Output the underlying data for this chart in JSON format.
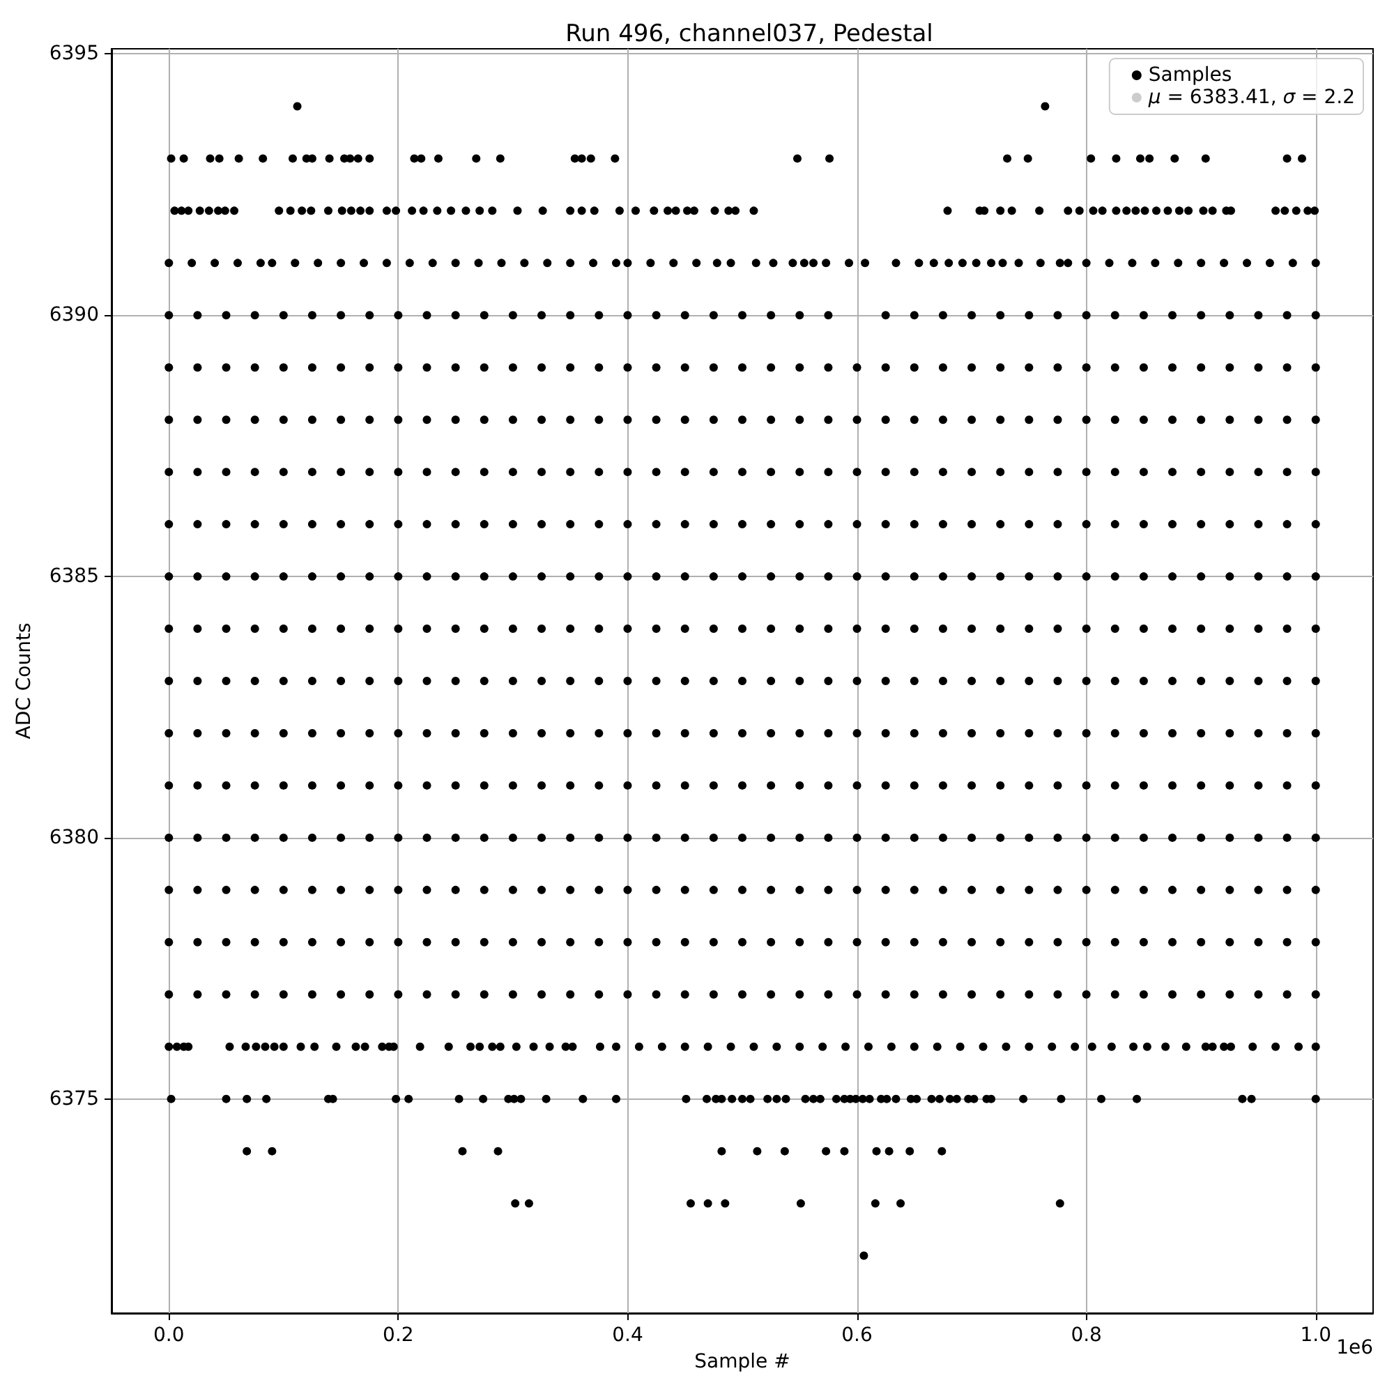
{
  "chart_data": {
    "type": "scatter",
    "title": "Run 496, channel037, Pedestal",
    "xlabel": "Sample #",
    "ylabel": "ADC Counts",
    "annotations": [
      "1e6"
    ],
    "xlim": [
      -0.05,
      1.05
    ],
    "xticks": [
      {
        "value": 0,
        "label": "0.0"
      },
      0.2,
      0.4,
      0.6,
      0.8,
      {
        "value": 1,
        "label": "1.0"
      }
    ],
    "ylim": [
      6370.9,
      6395.1
    ],
    "yticks": [
      6375,
      6380,
      6385,
      6390,
      6395
    ],
    "grid": true,
    "legend": "top right",
    "marker": "circle",
    "series": [
      {
        "name": "Samples",
        "color": "#000000",
        "x": [
          0.112,
          0.764,
          0.002,
          0.013,
          0.036,
          0.044,
          0.061,
          0.082,
          0.108,
          0.12,
          0.125,
          0.14,
          0.153,
          0.158,
          0.165,
          0.175,
          0.214,
          0.22,
          0.235,
          0.268,
          0.289,
          0.354,
          0.36,
          0.368,
          0.389,
          0.548,
          0.576,
          0.731,
          0.749,
          0.804,
          0.826,
          0.847,
          0.855,
          0.877,
          0.904,
          0.975,
          0.988,
          0.005,
          0.011,
          0.017,
          0.027,
          0.035,
          0.043,
          0.049,
          0.057,
          0.096,
          0.106,
          0.116,
          0.124,
          0.139,
          0.151,
          0.159,
          0.167,
          0.175,
          0.19,
          0.198,
          0.212,
          0.222,
          0.234,
          0.246,
          0.259,
          0.271,
          0.282,
          0.304,
          0.326,
          0.35,
          0.36,
          0.371,
          0.393,
          0.407,
          0.423,
          0.435,
          0.442,
          0.452,
          0.458,
          0.476,
          0.488,
          0.494,
          0.51,
          0.679,
          0.707,
          0.711,
          0.725,
          0.735,
          0.759,
          0.784,
          0.794,
          0.806,
          0.814,
          0.826,
          0.835,
          0.843,
          0.851,
          0.861,
          0.871,
          0.881,
          0.889,
          0.902,
          0.91,
          0.922,
          0.926,
          0.965,
          0.973,
          0.983,
          0.993,
          0.999,
          0,
          0.02,
          0.04,
          0.06,
          0.08,
          0.09,
          0.11,
          0.13,
          0.15,
          0.17,
          0.19,
          0.21,
          0.23,
          0.25,
          0.27,
          0.29,
          0.31,
          0.33,
          0.35,
          0.37,
          0.39,
          0.4,
          0.42,
          0.44,
          0.46,
          0.478,
          0.49,
          0.512,
          0.527,
          0.544,
          0.554,
          0.562,
          0.573,
          0.593,
          0.607,
          0.634,
          0.654,
          0.667,
          0.68,
          0.692,
          0.704,
          0.717,
          0.727,
          0.741,
          0.76,
          0.777,
          0.784,
          0.8,
          0.82,
          0.84,
          0.86,
          0.88,
          0.9,
          0.92,
          0.94,
          0.96,
          0.98,
          1,
          0,
          0.025,
          0.05,
          0.075,
          0.1,
          0.125,
          0.15,
          0.175,
          0.2,
          0.225,
          0.25,
          0.275,
          0.3,
          0.325,
          0.35,
          0.375,
          0.4,
          0.425,
          0.45,
          0.475,
          0.5,
          0.525,
          0.55,
          0.575,
          0.625,
          0.65,
          0.675,
          0.7,
          0.725,
          0.75,
          0.775,
          0.8,
          0.825,
          0.85,
          0.875,
          0.9,
          0.925,
          0.95,
          0.975,
          1,
          0,
          0.025,
          0.05,
          0.075,
          0.1,
          0.125,
          0.15,
          0.175,
          0.2,
          0.225,
          0.25,
          0.275,
          0.3,
          0.325,
          0.35,
          0.375,
          0.4,
          0.425,
          0.45,
          0.475,
          0.5,
          0.525,
          0.55,
          0.575,
          0.6,
          0.625,
          0.65,
          0.675,
          0.7,
          0.725,
          0.75,
          0.775,
          0.8,
          0.825,
          0.85,
          0.875,
          0.9,
          0.925,
          0.95,
          0.975,
          1,
          0,
          0.025,
          0.05,
          0.075,
          0.1,
          0.125,
          0.15,
          0.175,
          0.2,
          0.225,
          0.25,
          0.275,
          0.3,
          0.325,
          0.35,
          0.375,
          0.4,
          0.425,
          0.45,
          0.475,
          0.5,
          0.525,
          0.55,
          0.575,
          0.6,
          0.625,
          0.65,
          0.675,
          0.7,
          0.725,
          0.75,
          0.775,
          0.8,
          0.825,
          0.85,
          0.875,
          0.9,
          0.925,
          0.95,
          0.975,
          1,
          0,
          0.025,
          0.05,
          0.075,
          0.1,
          0.125,
          0.15,
          0.175,
          0.2,
          0.225,
          0.25,
          0.275,
          0.3,
          0.325,
          0.35,
          0.375,
          0.4,
          0.425,
          0.45,
          0.475,
          0.5,
          0.525,
          0.55,
          0.575,
          0.6,
          0.625,
          0.65,
          0.675,
          0.7,
          0.725,
          0.75,
          0.775,
          0.8,
          0.825,
          0.85,
          0.875,
          0.9,
          0.925,
          0.95,
          0.975,
          1,
          0,
          0.025,
          0.05,
          0.075,
          0.1,
          0.125,
          0.15,
          0.175,
          0.2,
          0.225,
          0.25,
          0.275,
          0.3,
          0.325,
          0.35,
          0.375,
          0.4,
          0.425,
          0.45,
          0.475,
          0.5,
          0.525,
          0.55,
          0.575,
          0.6,
          0.625,
          0.65,
          0.675,
          0.7,
          0.725,
          0.75,
          0.775,
          0.8,
          0.825,
          0.85,
          0.875,
          0.9,
          0.925,
          0.95,
          0.975,
          1,
          0,
          0.025,
          0.05,
          0.075,
          0.1,
          0.125,
          0.15,
          0.175,
          0.2,
          0.225,
          0.25,
          0.275,
          0.3,
          0.325,
          0.35,
          0.375,
          0.4,
          0.425,
          0.45,
          0.475,
          0.5,
          0.525,
          0.55,
          0.575,
          0.6,
          0.625,
          0.65,
          0.675,
          0.7,
          0.725,
          0.75,
          0.775,
          0.8,
          0.825,
          0.85,
          0.875,
          0.9,
          0.925,
          0.95,
          0.975,
          1,
          0,
          0.025,
          0.05,
          0.075,
          0.1,
          0.125,
          0.15,
          0.175,
          0.2,
          0.225,
          0.25,
          0.275,
          0.3,
          0.325,
          0.35,
          0.375,
          0.4,
          0.425,
          0.45,
          0.475,
          0.5,
          0.525,
          0.55,
          0.575,
          0.6,
          0.625,
          0.65,
          0.675,
          0.7,
          0.725,
          0.75,
          0.775,
          0.8,
          0.825,
          0.85,
          0.875,
          0.9,
          0.925,
          0.95,
          0.975,
          1,
          0,
          0.025,
          0.05,
          0.075,
          0.1,
          0.125,
          0.15,
          0.175,
          0.2,
          0.225,
          0.25,
          0.275,
          0.3,
          0.325,
          0.35,
          0.375,
          0.4,
          0.425,
          0.45,
          0.475,
          0.5,
          0.525,
          0.55,
          0.575,
          0.6,
          0.625,
          0.65,
          0.675,
          0.7,
          0.725,
          0.75,
          0.775,
          0.8,
          0.825,
          0.85,
          0.875,
          0.9,
          0.925,
          0.95,
          0.975,
          1,
          0,
          0.025,
          0.05,
          0.075,
          0.1,
          0.125,
          0.15,
          0.175,
          0.2,
          0.225,
          0.25,
          0.275,
          0.3,
          0.325,
          0.35,
          0.375,
          0.4,
          0.425,
          0.45,
          0.475,
          0.5,
          0.525,
          0.55,
          0.575,
          0.6,
          0.625,
          0.65,
          0.675,
          0.7,
          0.725,
          0.75,
          0.775,
          0.8,
          0.825,
          0.85,
          0.875,
          0.9,
          0.925,
          0.95,
          0.975,
          1,
          0,
          0.025,
          0.05,
          0.075,
          0.1,
          0.125,
          0.15,
          0.175,
          0.2,
          0.225,
          0.25,
          0.275,
          0.3,
          0.325,
          0.35,
          0.375,
          0.4,
          0.425,
          0.45,
          0.475,
          0.5,
          0.525,
          0.55,
          0.575,
          0.6,
          0.625,
          0.65,
          0.675,
          0.7,
          0.725,
          0.75,
          0.775,
          0.8,
          0.825,
          0.85,
          0.875,
          0.9,
          0.925,
          0.95,
          0.975,
          1,
          0,
          0.025,
          0.05,
          0.075,
          0.1,
          0.125,
          0.15,
          0.175,
          0.2,
          0.225,
          0.25,
          0.275,
          0.3,
          0.325,
          0.35,
          0.375,
          0.4,
          0.425,
          0.45,
          0.475,
          0.5,
          0.525,
          0.55,
          0.575,
          0.6,
          0.625,
          0.65,
          0.675,
          0.7,
          0.725,
          0.75,
          0.775,
          0.8,
          0.825,
          0.85,
          0.875,
          0.9,
          0.925,
          0.95,
          0.975,
          1,
          0,
          0.025,
          0.05,
          0.075,
          0.1,
          0.125,
          0.15,
          0.175,
          0.2,
          0.225,
          0.25,
          0.275,
          0.3,
          0.325,
          0.35,
          0.375,
          0.4,
          0.425,
          0.45,
          0.475,
          0.5,
          0.525,
          0.55,
          0.575,
          0.6,
          0.625,
          0.65,
          0.675,
          0.7,
          0.725,
          0.75,
          0.775,
          0.8,
          0.825,
          0.85,
          0.875,
          0.9,
          0.925,
          0.95,
          0.975,
          1,
          0,
          0.025,
          0.05,
          0.075,
          0.1,
          0.125,
          0.15,
          0.175,
          0.2,
          0.225,
          0.25,
          0.275,
          0.3,
          0.325,
          0.35,
          0.375,
          0.4,
          0.425,
          0.45,
          0.475,
          0.5,
          0.525,
          0.55,
          0.575,
          0.6,
          0.625,
          0.65,
          0.675,
          0.7,
          0.725,
          0.75,
          0.775,
          0.8,
          0.825,
          0.85,
          0.875,
          0.9,
          0.925,
          0.95,
          0.975,
          1,
          0,
          0.025,
          0.05,
          0.075,
          0.1,
          0.125,
          0.15,
          0.175,
          0.2,
          0.225,
          0.25,
          0.275,
          0.3,
          0.325,
          0.35,
          0.375,
          0.4,
          0.425,
          0.45,
          0.475,
          0.5,
          0.525,
          0.55,
          0.575,
          0.6,
          0.625,
          0.65,
          0.675,
          0.7,
          0.725,
          0.75,
          0.775,
          0.8,
          0.825,
          0.85,
          0.875,
          0.9,
          0.925,
          0.95,
          0.975,
          1,
          0,
          0.007,
          0.013,
          0.017,
          0.053,
          0.067,
          0.076,
          0.084,
          0.092,
          0.1,
          0.115,
          0.127,
          0.146,
          0.163,
          0.171,
          0.186,
          0.192,
          0.196,
          0.219,
          0.244,
          0.263,
          0.271,
          0.282,
          0.289,
          0.303,
          0.318,
          0.332,
          0.346,
          0.352,
          0.376,
          0.39,
          0.41,
          0.43,
          0.45,
          0.47,
          0.49,
          0.51,
          0.53,
          0.55,
          0.57,
          0.59,
          0.61,
          0.63,
          0.65,
          0.67,
          0.69,
          0.71,
          0.73,
          0.75,
          0.77,
          0.79,
          0.805,
          0.822,
          0.841,
          0.853,
          0.869,
          0.887,
          0.904,
          0.91,
          0.92,
          0.926,
          0.945,
          0.965,
          0.985,
          1,
          0.002,
          0.05,
          0.068,
          0.085,
          0.139,
          0.143,
          0.198,
          0.209,
          0.253,
          0.274,
          0.296,
          0.301,
          0.307,
          0.329,
          0.361,
          0.39,
          0.451,
          0.469,
          0.477,
          0.482,
          0.491,
          0.5,
          0.507,
          0.522,
          0.53,
          0.538,
          0.555,
          0.562,
          0.568,
          0.582,
          0.589,
          0.594,
          0.599,
          0.605,
          0.611,
          0.621,
          0.626,
          0.634,
          0.647,
          0.652,
          0.665,
          0.672,
          0.681,
          0.687,
          0.697,
          0.702,
          0.713,
          0.717,
          0.745,
          0.778,
          0.813,
          0.844,
          0.936,
          0.944,
          1,
          0.068,
          0.09,
          0.256,
          0.287,
          0.482,
          0.513,
          0.537,
          0.573,
          0.589,
          0.617,
          0.628,
          0.646,
          0.674,
          0.302,
          0.314,
          0.455,
          0.47,
          0.485,
          0.551,
          0.616,
          0.638,
          0.777,
          0.606
        ],
        "values": [
          6394,
          6394,
          6393,
          6393,
          6393,
          6393,
          6393,
          6393,
          6393,
          6393,
          6393,
          6393,
          6393,
          6393,
          6393,
          6393,
          6393,
          6393,
          6393,
          6393,
          6393,
          6393,
          6393,
          6393,
          6393,
          6393,
          6393,
          6393,
          6393,
          6393,
          6393,
          6393,
          6393,
          6393,
          6393,
          6393,
          6393,
          6392,
          6392,
          6392,
          6392,
          6392,
          6392,
          6392,
          6392,
          6392,
          6392,
          6392,
          6392,
          6392,
          6392,
          6392,
          6392,
          6392,
          6392,
          6392,
          6392,
          6392,
          6392,
          6392,
          6392,
          6392,
          6392,
          6392,
          6392,
          6392,
          6392,
          6392,
          6392,
          6392,
          6392,
          6392,
          6392,
          6392,
          6392,
          6392,
          6392,
          6392,
          6392,
          6392,
          6392,
          6392,
          6392,
          6392,
          6392,
          6392,
          6392,
          6392,
          6392,
          6392,
          6392,
          6392,
          6392,
          6392,
          6392,
          6392,
          6392,
          6392,
          6392,
          6392,
          6392,
          6392,
          6392,
          6392,
          6392,
          6392,
          6391,
          6391,
          6391,
          6391,
          6391,
          6391,
          6391,
          6391,
          6391,
          6391,
          6391,
          6391,
          6391,
          6391,
          6391,
          6391,
          6391,
          6391,
          6391,
          6391,
          6391,
          6391,
          6391,
          6391,
          6391,
          6391,
          6391,
          6391,
          6391,
          6391,
          6391,
          6391,
          6391,
          6391,
          6391,
          6391,
          6391,
          6391,
          6391,
          6391,
          6391,
          6391,
          6391,
          6391,
          6391,
          6391,
          6391,
          6391,
          6391,
          6391,
          6391,
          6391,
          6391,
          6391,
          6391,
          6391,
          6391,
          6391,
          6390,
          6390,
          6390,
          6390,
          6390,
          6390,
          6390,
          6390,
          6390,
          6390,
          6390,
          6390,
          6390,
          6390,
          6390,
          6390,
          6390,
          6390,
          6390,
          6390,
          6390,
          6390,
          6390,
          6390,
          6390,
          6390,
          6390,
          6390,
          6390,
          6390,
          6390,
          6390,
          6390,
          6390,
          6390,
          6390,
          6390,
          6390,
          6390,
          6390,
          6389,
          6389,
          6389,
          6389,
          6389,
          6389,
          6389,
          6389,
          6389,
          6389,
          6389,
          6389,
          6389,
          6389,
          6389,
          6389,
          6389,
          6389,
          6389,
          6389,
          6389,
          6389,
          6389,
          6389,
          6389,
          6389,
          6389,
          6389,
          6389,
          6389,
          6389,
          6389,
          6389,
          6389,
          6389,
          6389,
          6389,
          6389,
          6389,
          6389,
          6389,
          6388,
          6388,
          6388,
          6388,
          6388,
          6388,
          6388,
          6388,
          6388,
          6388,
          6388,
          6388,
          6388,
          6388,
          6388,
          6388,
          6388,
          6388,
          6388,
          6388,
          6388,
          6388,
          6388,
          6388,
          6388,
          6388,
          6388,
          6388,
          6388,
          6388,
          6388,
          6388,
          6388,
          6388,
          6388,
          6388,
          6388,
          6388,
          6388,
          6388,
          6388,
          6387,
          6387,
          6387,
          6387,
          6387,
          6387,
          6387,
          6387,
          6387,
          6387,
          6387,
          6387,
          6387,
          6387,
          6387,
          6387,
          6387,
          6387,
          6387,
          6387,
          6387,
          6387,
          6387,
          6387,
          6387,
          6387,
          6387,
          6387,
          6387,
          6387,
          6387,
          6387,
          6387,
          6387,
          6387,
          6387,
          6387,
          6387,
          6387,
          6387,
          6387,
          6386,
          6386,
          6386,
          6386,
          6386,
          6386,
          6386,
          6386,
          6386,
          6386,
          6386,
          6386,
          6386,
          6386,
          6386,
          6386,
          6386,
          6386,
          6386,
          6386,
          6386,
          6386,
          6386,
          6386,
          6386,
          6386,
          6386,
          6386,
          6386,
          6386,
          6386,
          6386,
          6386,
          6386,
          6386,
          6386,
          6386,
          6386,
          6386,
          6386,
          6386,
          6385,
          6385,
          6385,
          6385,
          6385,
          6385,
          6385,
          6385,
          6385,
          6385,
          6385,
          6385,
          6385,
          6385,
          6385,
          6385,
          6385,
          6385,
          6385,
          6385,
          6385,
          6385,
          6385,
          6385,
          6385,
          6385,
          6385,
          6385,
          6385,
          6385,
          6385,
          6385,
          6385,
          6385,
          6385,
          6385,
          6385,
          6385,
          6385,
          6385,
          6385,
          6384,
          6384,
          6384,
          6384,
          6384,
          6384,
          6384,
          6384,
          6384,
          6384,
          6384,
          6384,
          6384,
          6384,
          6384,
          6384,
          6384,
          6384,
          6384,
          6384,
          6384,
          6384,
          6384,
          6384,
          6384,
          6384,
          6384,
          6384,
          6384,
          6384,
          6384,
          6384,
          6384,
          6384,
          6384,
          6384,
          6384,
          6384,
          6384,
          6384,
          6384,
          6383,
          6383,
          6383,
          6383,
          6383,
          6383,
          6383,
          6383,
          6383,
          6383,
          6383,
          6383,
          6383,
          6383,
          6383,
          6383,
          6383,
          6383,
          6383,
          6383,
          6383,
          6383,
          6383,
          6383,
          6383,
          6383,
          6383,
          6383,
          6383,
          6383,
          6383,
          6383,
          6383,
          6383,
          6383,
          6383,
          6383,
          6383,
          6383,
          6383,
          6383,
          6382,
          6382,
          6382,
          6382,
          6382,
          6382,
          6382,
          6382,
          6382,
          6382,
          6382,
          6382,
          6382,
          6382,
          6382,
          6382,
          6382,
          6382,
          6382,
          6382,
          6382,
          6382,
          6382,
          6382,
          6382,
          6382,
          6382,
          6382,
          6382,
          6382,
          6382,
          6382,
          6382,
          6382,
          6382,
          6382,
          6382,
          6382,
          6382,
          6382,
          6382,
          6381,
          6381,
          6381,
          6381,
          6381,
          6381,
          6381,
          6381,
          6381,
          6381,
          6381,
          6381,
          6381,
          6381,
          6381,
          6381,
          6381,
          6381,
          6381,
          6381,
          6381,
          6381,
          6381,
          6381,
          6381,
          6381,
          6381,
          6381,
          6381,
          6381,
          6381,
          6381,
          6381,
          6381,
          6381,
          6381,
          6381,
          6381,
          6381,
          6381,
          6381,
          6380,
          6380,
          6380,
          6380,
          6380,
          6380,
          6380,
          6380,
          6380,
          6380,
          6380,
          6380,
          6380,
          6380,
          6380,
          6380,
          6380,
          6380,
          6380,
          6380,
          6380,
          6380,
          6380,
          6380,
          6380,
          6380,
          6380,
          6380,
          6380,
          6380,
          6380,
          6380,
          6380,
          6380,
          6380,
          6380,
          6380,
          6380,
          6380,
          6380,
          6380,
          6379,
          6379,
          6379,
          6379,
          6379,
          6379,
          6379,
          6379,
          6379,
          6379,
          6379,
          6379,
          6379,
          6379,
          6379,
          6379,
          6379,
          6379,
          6379,
          6379,
          6379,
          6379,
          6379,
          6379,
          6379,
          6379,
          6379,
          6379,
          6379,
          6379,
          6379,
          6379,
          6379,
          6379,
          6379,
          6379,
          6379,
          6379,
          6379,
          6379,
          6379,
          6378,
          6378,
          6378,
          6378,
          6378,
          6378,
          6378,
          6378,
          6378,
          6378,
          6378,
          6378,
          6378,
          6378,
          6378,
          6378,
          6378,
          6378,
          6378,
          6378,
          6378,
          6378,
          6378,
          6378,
          6378,
          6378,
          6378,
          6378,
          6378,
          6378,
          6378,
          6378,
          6378,
          6378,
          6378,
          6378,
          6378,
          6378,
          6378,
          6378,
          6378,
          6377,
          6377,
          6377,
          6377,
          6377,
          6377,
          6377,
          6377,
          6377,
          6377,
          6377,
          6377,
          6377,
          6377,
          6377,
          6377,
          6377,
          6377,
          6377,
          6377,
          6377,
          6377,
          6377,
          6377,
          6377,
          6377,
          6377,
          6377,
          6377,
          6377,
          6377,
          6377,
          6377,
          6377,
          6377,
          6377,
          6377,
          6377,
          6377,
          6377,
          6377,
          6376,
          6376,
          6376,
          6376,
          6376,
          6376,
          6376,
          6376,
          6376,
          6376,
          6376,
          6376,
          6376,
          6376,
          6376,
          6376,
          6376,
          6376,
          6376,
          6376,
          6376,
          6376,
          6376,
          6376,
          6376,
          6376,
          6376,
          6376,
          6376,
          6376,
          6376,
          6376,
          6376,
          6376,
          6376,
          6376,
          6376,
          6376,
          6376,
          6376,
          6376,
          6376,
          6376,
          6376,
          6376,
          6376,
          6376,
          6376,
          6376,
          6376,
          6376,
          6376,
          6376,
          6376,
          6376,
          6376,
          6376,
          6376,
          6376,
          6376,
          6376,
          6376,
          6376,
          6376,
          6376,
          6375,
          6375,
          6375,
          6375,
          6375,
          6375,
          6375,
          6375,
          6375,
          6375,
          6375,
          6375,
          6375,
          6375,
          6375,
          6375,
          6375,
          6375,
          6375,
          6375,
          6375,
          6375,
          6375,
          6375,
          6375,
          6375,
          6375,
          6375,
          6375,
          6375,
          6375,
          6375,
          6375,
          6375,
          6375,
          6375,
          6375,
          6375,
          6375,
          6375,
          6375,
          6375,
          6375,
          6375,
          6375,
          6375,
          6375,
          6375,
          6375,
          6375,
          6375,
          6375,
          6375,
          6375,
          6375,
          6374,
          6374,
          6374,
          6374,
          6374,
          6374,
          6374,
          6374,
          6374,
          6374,
          6374,
          6374,
          6374,
          6373,
          6373,
          6373,
          6373,
          6373,
          6373,
          6373,
          6373,
          6373,
          6372
        ]
      },
      {
        "name": "μ = 6383.41, σ = 2.2",
        "color": "#cccccc"
      }
    ]
  }
}
